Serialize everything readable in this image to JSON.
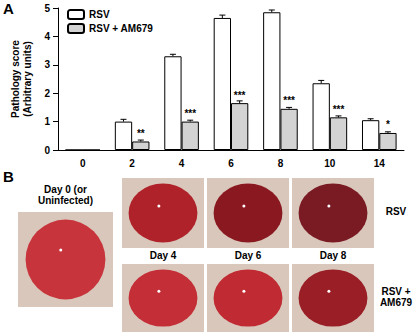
{
  "chart_data": {
    "type": "bar",
    "ylabel": "Pathology score\n(Arbitrary units)",
    "categories": [
      "0",
      "2",
      "4",
      "6",
      "8",
      "10",
      "14"
    ],
    "series": [
      {
        "name": "RSV",
        "color": "#ffffff",
        "values": [
          0,
          1.0,
          3.3,
          4.65,
          4.85,
          2.35,
          1.05
        ],
        "errors": [
          0,
          0.08,
          0.07,
          0.1,
          0.08,
          0.1,
          0.05
        ]
      },
      {
        "name": "RSV + AM679",
        "color": "#d3d3d3",
        "values": [
          0,
          0.3,
          1.0,
          1.65,
          1.45,
          1.15,
          0.6
        ],
        "errors": [
          0,
          0.05,
          0.05,
          0.08,
          0.05,
          0.05,
          0.04
        ],
        "annotations": [
          null,
          "**",
          "***",
          "***",
          "***",
          "***",
          "*"
        ]
      }
    ],
    "ylim": [
      0,
      5
    ],
    "yticks": [
      0,
      1,
      2,
      3,
      4,
      5
    ],
    "grid": false,
    "legend": "upper left"
  },
  "panel_labels": [
    "A",
    "B"
  ],
  "photo_panel": {
    "reference_caption": "Day 0 (or Uninfected)",
    "day_captions": [
      "Day 4",
      "Day 6",
      "Day 8"
    ],
    "row_labels": [
      "RSV",
      "RSV + AM679"
    ]
  }
}
